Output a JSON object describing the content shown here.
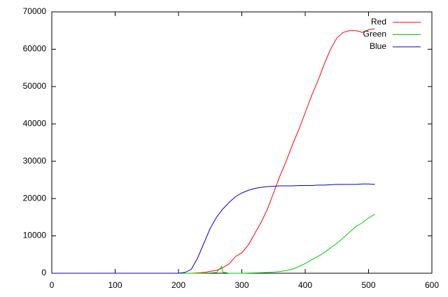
{
  "chart_data": {
    "type": "line",
    "x": [
      0,
      10,
      20,
      30,
      40,
      50,
      60,
      70,
      80,
      90,
      100,
      110,
      120,
      130,
      140,
      150,
      160,
      170,
      180,
      190,
      200,
      210,
      220,
      230,
      240,
      250,
      260,
      268,
      270,
      280,
      290,
      300,
      310,
      320,
      330,
      340,
      350,
      360,
      370,
      380,
      390,
      400,
      410,
      420,
      430,
      440,
      450,
      460,
      470,
      480,
      490,
      500,
      510
    ],
    "series": [
      {
        "name": "Red",
        "color": "#ff0000",
        "values": [
          0,
          0,
          0,
          0,
          0,
          0,
          0,
          0,
          0,
          0,
          0,
          0,
          0,
          0,
          0,
          0,
          0,
          0,
          0,
          0,
          0,
          0,
          0,
          100,
          200,
          500,
          800,
          1300,
          1500,
          2500,
          4500,
          5500,
          7500,
          10500,
          13500,
          17000,
          21500,
          26000,
          30000,
          34500,
          38500,
          43000,
          47500,
          51500,
          56000,
          60000,
          63000,
          64500,
          65000,
          65000,
          64500,
          65200,
          65500
        ]
      },
      {
        "name": "Green",
        "color": "#00cc00",
        "values": [
          0,
          0,
          0,
          0,
          0,
          0,
          0,
          0,
          0,
          0,
          0,
          0,
          0,
          0,
          0,
          0,
          0,
          0,
          0,
          0,
          0,
          0,
          0,
          0,
          50,
          100,
          200,
          1800,
          300,
          0,
          0,
          0,
          50,
          100,
          150,
          200,
          300,
          450,
          700,
          1100,
          1800,
          2600,
          3600,
          4500,
          5500,
          6800,
          8000,
          9500,
          11000,
          12500,
          13500,
          14800,
          15800
        ]
      },
      {
        "name": "Blue",
        "color": "#0000cc",
        "values": [
          0,
          0,
          0,
          0,
          0,
          0,
          0,
          0,
          0,
          0,
          0,
          0,
          0,
          0,
          0,
          0,
          0,
          0,
          0,
          0,
          0,
          200,
          1000,
          4000,
          8000,
          12000,
          15000,
          16800,
          17200,
          19000,
          20500,
          21500,
          22200,
          22700,
          23000,
          23200,
          23300,
          23400,
          23400,
          23400,
          23500,
          23500,
          23500,
          23600,
          23600,
          23700,
          23800,
          23800,
          23800,
          23800,
          23900,
          23900,
          23800
        ]
      }
    ],
    "xlim": [
      0,
      600
    ],
    "xticks": [
      0,
      100,
      200,
      300,
      400,
      500,
      600
    ],
    "ylim": [
      0,
      70000
    ],
    "yticks": [
      0,
      10000,
      20000,
      30000,
      40000,
      50000,
      60000,
      70000
    ],
    "legend": "top-right"
  }
}
